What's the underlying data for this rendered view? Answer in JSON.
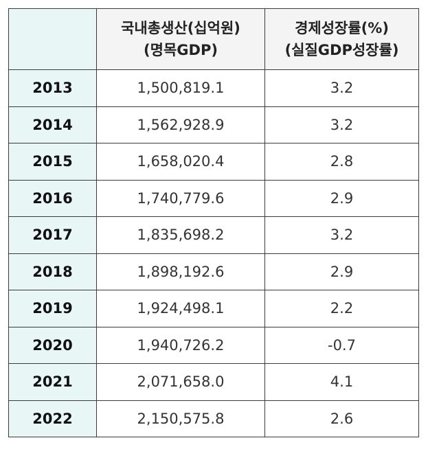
{
  "table": {
    "header": {
      "gdp_line1": "국내총생산(십억원)",
      "gdp_line2": "(명목GDP)",
      "rate_line1": "경제성장률(%)",
      "rate_line2": "(실질GDP성장률)"
    },
    "rows": [
      {
        "year": "2013",
        "gdp": "1,500,819.1",
        "growth": "3.2"
      },
      {
        "year": "2014",
        "gdp": "1,562,928.9",
        "growth": "3.2"
      },
      {
        "year": "2015",
        "gdp": "1,658,020.4",
        "growth": "2.8"
      },
      {
        "year": "2016",
        "gdp": "1,740,779.6",
        "growth": "2.9"
      },
      {
        "year": "2017",
        "gdp": "1,835,698.2",
        "growth": "3.2"
      },
      {
        "year": "2018",
        "gdp": "1,898,192.6",
        "growth": "2.9"
      },
      {
        "year": "2019",
        "gdp": "1,924,498.1",
        "growth": "2.2"
      },
      {
        "year": "2020",
        "gdp": "1,940,726.2",
        "growth": "-0.7"
      },
      {
        "year": "2021",
        "gdp": "2,071,658.0",
        "growth": "4.1"
      },
      {
        "year": "2022",
        "gdp": "2,150,575.8",
        "growth": "2.6"
      }
    ]
  },
  "colors": {
    "year_column_bg": "#e8f6f6",
    "header_bg": "#f4f4f4",
    "border": "#3a3a3a"
  }
}
